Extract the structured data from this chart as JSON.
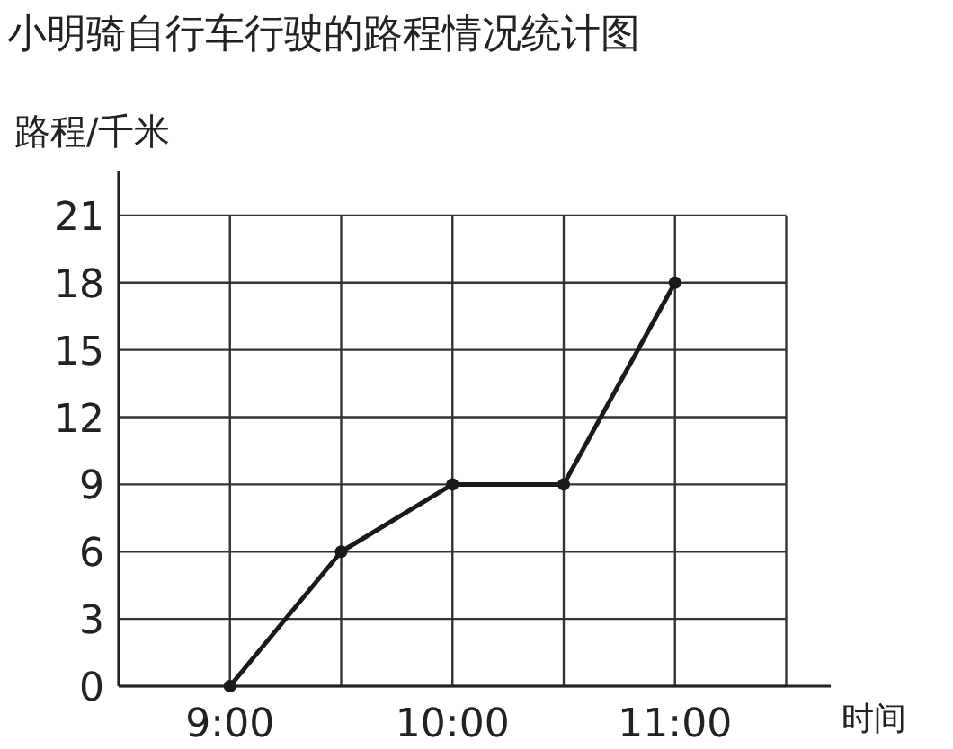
{
  "chart_data": {
    "type": "line",
    "title": "小明骑自行车行驶的路程情况统计图",
    "ylabel": "路程/千米",
    "xlabel": "时间",
    "x": [
      9,
      9.5,
      10,
      10.5,
      11
    ],
    "series": [
      {
        "color": "#1a1a1a",
        "values": [
          0,
          6,
          9,
          9,
          18
        ]
      }
    ],
    "xlim": [
      8.5,
      11.7
    ],
    "xticks": [
      {
        "value": 9,
        "label": "9:00"
      },
      {
        "value": 9.5,
        "label": null
      },
      {
        "value": 10,
        "label": "10:00"
      },
      {
        "value": 10.5,
        "label": null
      },
      {
        "value": 11,
        "label": "11:00"
      },
      {
        "value": 11.5,
        "label": null
      }
    ],
    "ylim": [
      0,
      23
    ],
    "yticks": [
      0,
      3,
      6,
      9,
      12,
      15,
      18,
      21
    ],
    "grid": true,
    "marker": "circle",
    "line_style": "solid"
  }
}
